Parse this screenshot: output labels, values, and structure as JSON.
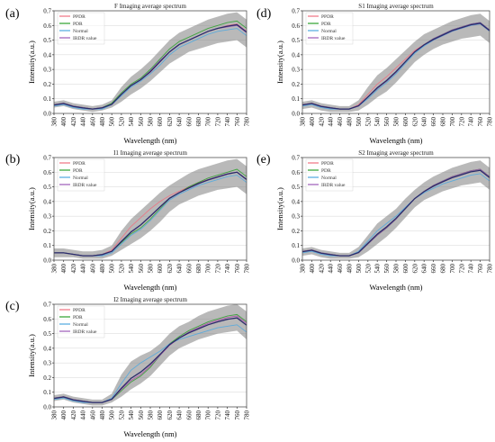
{
  "figure": {
    "panels": [
      {
        "id": "a",
        "letter": "(a)"
      },
      {
        "id": "b",
        "letter": "(b)"
      },
      {
        "id": "c",
        "letter": "(c)"
      },
      {
        "id": "d",
        "letter": "(d)"
      },
      {
        "id": "e",
        "letter": "(e)"
      }
    ]
  },
  "colors": {
    "PPDR": "#f07080",
    "PDR": "#2ca02c",
    "Normal": "#4ea8e0",
    "IRDR value": "#9b59b6",
    "band": "#808080",
    "mean": "#2b2b6b"
  },
  "chart_data": [
    {
      "type": "line",
      "panel": "a",
      "title": "F Imaging average spectrum",
      "xlabel": "Wavelength (nm)",
      "ylabel": "Intensity(a.u.)",
      "xlim": [
        380,
        780
      ],
      "ylim": [
        0.0,
        0.7
      ],
      "xticks": [
        "380",
        "400",
        "420",
        "440",
        "460",
        "480",
        "500",
        "520",
        "540",
        "560",
        "580",
        "600",
        "620",
        "640",
        "660",
        "680",
        "700",
        "720",
        "740",
        "760",
        "780"
      ],
      "yticks": [
        "0.0",
        "0.1",
        "0.2",
        "0.3",
        "0.4",
        "0.5",
        "0.6",
        "0.7"
      ],
      "legend": [
        "PPDR",
        "PDR",
        "Normal",
        "IRDR value"
      ],
      "x": [
        380,
        400,
        420,
        440,
        460,
        480,
        500,
        520,
        540,
        560,
        580,
        600,
        620,
        640,
        660,
        680,
        700,
        720,
        740,
        760,
        780
      ],
      "series": [
        {
          "name": "PPDR",
          "values": [
            0.06,
            0.07,
            0.05,
            0.04,
            0.03,
            0.04,
            0.06,
            0.13,
            0.19,
            0.23,
            0.28,
            0.35,
            0.42,
            0.47,
            0.5,
            0.53,
            0.56,
            0.58,
            0.6,
            0.61,
            0.56
          ]
        },
        {
          "name": "PDR",
          "values": [
            0.06,
            0.07,
            0.05,
            0.04,
            0.03,
            0.04,
            0.07,
            0.14,
            0.2,
            0.24,
            0.3,
            0.37,
            0.44,
            0.49,
            0.52,
            0.55,
            0.58,
            0.6,
            0.62,
            0.63,
            0.58
          ]
        },
        {
          "name": "Normal",
          "values": [
            0.05,
            0.06,
            0.04,
            0.03,
            0.03,
            0.03,
            0.06,
            0.12,
            0.18,
            0.22,
            0.27,
            0.33,
            0.4,
            0.45,
            0.48,
            0.51,
            0.54,
            0.56,
            0.57,
            0.58,
            0.53
          ]
        },
        {
          "name": "IRDR value",
          "values": [
            0.06,
            0.07,
            0.05,
            0.04,
            0.03,
            0.04,
            0.06,
            0.13,
            0.19,
            0.23,
            0.29,
            0.36,
            0.42,
            0.47,
            0.5,
            0.53,
            0.56,
            0.58,
            0.59,
            0.6,
            0.55
          ]
        }
      ],
      "band_low": [
        0.04,
        0.05,
        0.03,
        0.02,
        0.01,
        0.02,
        0.04,
        0.08,
        0.13,
        0.17,
        0.22,
        0.28,
        0.34,
        0.38,
        0.42,
        0.44,
        0.46,
        0.48,
        0.49,
        0.5,
        0.45
      ],
      "band_high": [
        0.08,
        0.09,
        0.07,
        0.06,
        0.05,
        0.06,
        0.09,
        0.18,
        0.25,
        0.3,
        0.36,
        0.43,
        0.5,
        0.55,
        0.58,
        0.61,
        0.64,
        0.66,
        0.68,
        0.69,
        0.64
      ]
    },
    {
      "type": "line",
      "panel": "b",
      "title": "I1 Imaging average spectrum",
      "xlabel": "Wavelength (nm)",
      "ylabel": "Intensity(a.u.)",
      "xlim": [
        380,
        780
      ],
      "ylim": [
        0.0,
        0.7
      ],
      "xticks": [
        "380",
        "400",
        "420",
        "440",
        "460",
        "480",
        "500",
        "520",
        "540",
        "560",
        "580",
        "600",
        "620",
        "640",
        "660",
        "680",
        "700",
        "720",
        "740",
        "760",
        "780"
      ],
      "yticks": [
        "0.0",
        "0.1",
        "0.2",
        "0.3",
        "0.4",
        "0.5",
        "0.6",
        "0.7"
      ],
      "legend": [
        "PPDR",
        "PDR",
        "Normal",
        "IRDR value"
      ],
      "x": [
        380,
        400,
        420,
        440,
        460,
        480,
        500,
        520,
        540,
        560,
        580,
        600,
        620,
        640,
        660,
        680,
        700,
        720,
        740,
        760,
        780
      ],
      "series": [
        {
          "name": "PPDR",
          "values": [
            0.05,
            0.05,
            0.04,
            0.03,
            0.03,
            0.04,
            0.07,
            0.15,
            0.23,
            0.29,
            0.35,
            0.4,
            0.44,
            0.47,
            0.5,
            0.53,
            0.55,
            0.57,
            0.59,
            0.6,
            0.55
          ]
        },
        {
          "name": "PDR",
          "values": [
            0.05,
            0.05,
            0.04,
            0.03,
            0.03,
            0.04,
            0.06,
            0.12,
            0.18,
            0.22,
            0.28,
            0.35,
            0.42,
            0.46,
            0.5,
            0.53,
            0.56,
            0.58,
            0.6,
            0.62,
            0.57
          ]
        },
        {
          "name": "Normal",
          "values": [
            0.05,
            0.05,
            0.04,
            0.03,
            0.03,
            0.03,
            0.05,
            0.11,
            0.17,
            0.21,
            0.27,
            0.34,
            0.41,
            0.45,
            0.48,
            0.51,
            0.53,
            0.55,
            0.57,
            0.58,
            0.53
          ]
        },
        {
          "name": "IRDR value",
          "values": [
            0.05,
            0.05,
            0.04,
            0.03,
            0.03,
            0.04,
            0.06,
            0.13,
            0.19,
            0.24,
            0.3,
            0.36,
            0.42,
            0.46,
            0.49,
            0.52,
            0.55,
            0.57,
            0.59,
            0.6,
            0.55
          ]
        }
      ],
      "band_low": [
        0.02,
        0.02,
        0.02,
        0.01,
        0.01,
        0.01,
        0.03,
        0.07,
        0.11,
        0.15,
        0.2,
        0.26,
        0.33,
        0.38,
        0.41,
        0.44,
        0.46,
        0.48,
        0.49,
        0.5,
        0.45
      ],
      "band_high": [
        0.08,
        0.08,
        0.07,
        0.06,
        0.06,
        0.07,
        0.1,
        0.2,
        0.28,
        0.34,
        0.4,
        0.46,
        0.51,
        0.55,
        0.59,
        0.62,
        0.64,
        0.66,
        0.68,
        0.69,
        0.64
      ]
    },
    {
      "type": "line",
      "panel": "c",
      "title": "I2 Imaging average spectrum",
      "xlabel": "Wavelength (nm)",
      "ylabel": "Intensity(a.u.)",
      "xlim": [
        380,
        780
      ],
      "ylim": [
        0.0,
        0.7
      ],
      "xticks": [
        "380",
        "400",
        "420",
        "440",
        "460",
        "480",
        "500",
        "520",
        "540",
        "560",
        "580",
        "600",
        "620",
        "640",
        "660",
        "680",
        "700",
        "720",
        "740",
        "760",
        "780"
      ],
      "yticks": [
        "0.0",
        "0.1",
        "0.2",
        "0.3",
        "0.4",
        "0.5",
        "0.6",
        "0.7"
      ],
      "legend": [
        "PPDR",
        "PDR",
        "Normal",
        "IRDR value"
      ],
      "x": [
        380,
        400,
        420,
        440,
        460,
        480,
        500,
        520,
        540,
        560,
        580,
        600,
        620,
        640,
        660,
        680,
        700,
        720,
        740,
        760,
        780
      ],
      "series": [
        {
          "name": "PPDR",
          "values": [
            0.06,
            0.07,
            0.05,
            0.04,
            0.03,
            0.03,
            0.05,
            0.12,
            0.18,
            0.22,
            0.28,
            0.35,
            0.42,
            0.47,
            0.51,
            0.54,
            0.57,
            0.59,
            0.61,
            0.62,
            0.57
          ]
        },
        {
          "name": "PDR",
          "values": [
            0.06,
            0.07,
            0.05,
            0.04,
            0.03,
            0.03,
            0.05,
            0.11,
            0.17,
            0.21,
            0.27,
            0.35,
            0.43,
            0.48,
            0.52,
            0.55,
            0.58,
            0.6,
            0.62,
            0.63,
            0.58
          ]
        },
        {
          "name": "Normal",
          "values": [
            0.05,
            0.06,
            0.04,
            0.03,
            0.03,
            0.03,
            0.06,
            0.16,
            0.25,
            0.3,
            0.34,
            0.38,
            0.43,
            0.46,
            0.48,
            0.5,
            0.52,
            0.54,
            0.55,
            0.56,
            0.51
          ]
        },
        {
          "name": "IRDR value",
          "values": [
            0.06,
            0.07,
            0.05,
            0.04,
            0.03,
            0.03,
            0.05,
            0.12,
            0.18,
            0.22,
            0.28,
            0.35,
            0.42,
            0.47,
            0.51,
            0.54,
            0.57,
            0.59,
            0.61,
            0.62,
            0.57
          ]
        }
      ],
      "band_low": [
        0.04,
        0.05,
        0.03,
        0.02,
        0.01,
        0.01,
        0.03,
        0.07,
        0.12,
        0.16,
        0.21,
        0.28,
        0.35,
        0.4,
        0.43,
        0.46,
        0.48,
        0.5,
        0.51,
        0.52,
        0.46
      ],
      "band_high": [
        0.08,
        0.09,
        0.07,
        0.06,
        0.05,
        0.05,
        0.09,
        0.22,
        0.31,
        0.35,
        0.38,
        0.43,
        0.5,
        0.55,
        0.58,
        0.62,
        0.65,
        0.67,
        0.69,
        0.7,
        0.65
      ]
    },
    {
      "type": "line",
      "panel": "d",
      "title": "S1 Imaging average spectrum",
      "xlabel": "Wavelength (nm)",
      "ylabel": "Intensity(a.u.)",
      "xlim": [
        380,
        780
      ],
      "ylim": [
        0.0,
        0.7
      ],
      "xticks": [
        "380",
        "400",
        "420",
        "440",
        "460",
        "480",
        "500",
        "520",
        "540",
        "560",
        "580",
        "600",
        "620",
        "640",
        "660",
        "680",
        "700",
        "720",
        "740",
        "760",
        "780"
      ],
      "yticks": [
        "0.0",
        "0.1",
        "0.2",
        "0.3",
        "0.4",
        "0.5",
        "0.6",
        "0.7"
      ],
      "legend": [
        "PPDR",
        "PDR",
        "Normal",
        "IRDR value"
      ],
      "x": [
        380,
        400,
        420,
        440,
        460,
        480,
        500,
        520,
        540,
        560,
        580,
        600,
        620,
        640,
        660,
        680,
        700,
        720,
        740,
        760,
        780
      ],
      "series": [
        {
          "name": "PPDR",
          "values": [
            0.06,
            0.07,
            0.05,
            0.04,
            0.03,
            0.03,
            0.06,
            0.13,
            0.2,
            0.25,
            0.31,
            0.37,
            0.43,
            0.47,
            0.5,
            0.53,
            0.56,
            0.58,
            0.6,
            0.61,
            0.56
          ]
        },
        {
          "name": "PDR",
          "values": [
            0.06,
            0.07,
            0.05,
            0.04,
            0.03,
            0.03,
            0.05,
            0.11,
            0.17,
            0.22,
            0.28,
            0.35,
            0.42,
            0.47,
            0.51,
            0.54,
            0.57,
            0.59,
            0.61,
            0.62,
            0.57
          ]
        },
        {
          "name": "Normal",
          "values": [
            0.05,
            0.06,
            0.04,
            0.03,
            0.03,
            0.03,
            0.05,
            0.1,
            0.16,
            0.21,
            0.27,
            0.34,
            0.41,
            0.46,
            0.5,
            0.53,
            0.56,
            0.58,
            0.6,
            0.61,
            0.56
          ]
        },
        {
          "name": "IRDR value",
          "values": [
            0.06,
            0.07,
            0.05,
            0.04,
            0.03,
            0.03,
            0.05,
            0.11,
            0.17,
            0.22,
            0.28,
            0.35,
            0.42,
            0.47,
            0.51,
            0.54,
            0.57,
            0.59,
            0.61,
            0.62,
            0.57
          ]
        }
      ],
      "band_low": [
        0.03,
        0.04,
        0.02,
        0.01,
        0.01,
        0.01,
        0.02,
        0.06,
        0.11,
        0.15,
        0.21,
        0.28,
        0.35,
        0.4,
        0.44,
        0.47,
        0.49,
        0.51,
        0.52,
        0.53,
        0.48
      ],
      "band_high": [
        0.08,
        0.09,
        0.07,
        0.06,
        0.05,
        0.05,
        0.09,
        0.18,
        0.26,
        0.31,
        0.37,
        0.43,
        0.49,
        0.54,
        0.57,
        0.6,
        0.63,
        0.65,
        0.67,
        0.68,
        0.63
      ]
    },
    {
      "type": "line",
      "panel": "e",
      "title": "S2 Imaging average spectrum",
      "xlabel": "Wavelength (nm)",
      "ylabel": "Intensity(a.u.)",
      "xlim": [
        380,
        780
      ],
      "ylim": [
        0.0,
        0.7
      ],
      "xticks": [
        "380",
        "400",
        "420",
        "440",
        "460",
        "480",
        "500",
        "520",
        "540",
        "560",
        "580",
        "600",
        "620",
        "640",
        "660",
        "680",
        "700",
        "720",
        "740",
        "760",
        "780"
      ],
      "yticks": [
        "0.0",
        "0.1",
        "0.2",
        "0.3",
        "0.4",
        "0.5",
        "0.6",
        "0.7"
      ],
      "legend": [
        "PPDR",
        "PDR",
        "Normal",
        "IRDR value"
      ],
      "x": [
        380,
        400,
        420,
        440,
        460,
        480,
        500,
        520,
        540,
        560,
        580,
        600,
        620,
        640,
        660,
        680,
        700,
        720,
        740,
        760,
        780
      ],
      "series": [
        {
          "name": "PPDR",
          "values": [
            0.06,
            0.07,
            0.05,
            0.04,
            0.03,
            0.03,
            0.05,
            0.11,
            0.17,
            0.22,
            0.28,
            0.35,
            0.42,
            0.47,
            0.51,
            0.54,
            0.57,
            0.59,
            0.61,
            0.62,
            0.57
          ]
        },
        {
          "name": "PDR",
          "values": [
            0.06,
            0.07,
            0.05,
            0.04,
            0.03,
            0.03,
            0.05,
            0.11,
            0.17,
            0.22,
            0.28,
            0.35,
            0.42,
            0.47,
            0.51,
            0.54,
            0.57,
            0.59,
            0.61,
            0.62,
            0.57
          ]
        },
        {
          "name": "Normal",
          "values": [
            0.05,
            0.06,
            0.04,
            0.03,
            0.03,
            0.03,
            0.06,
            0.13,
            0.2,
            0.25,
            0.3,
            0.36,
            0.42,
            0.46,
            0.49,
            0.52,
            0.54,
            0.56,
            0.58,
            0.59,
            0.54
          ]
        },
        {
          "name": "IRDR value",
          "values": [
            0.06,
            0.07,
            0.05,
            0.04,
            0.03,
            0.03,
            0.05,
            0.11,
            0.17,
            0.22,
            0.28,
            0.35,
            0.42,
            0.47,
            0.51,
            0.54,
            0.57,
            0.59,
            0.61,
            0.62,
            0.57
          ]
        }
      ],
      "band_low": [
        0.03,
        0.04,
        0.02,
        0.01,
        0.01,
        0.01,
        0.02,
        0.06,
        0.11,
        0.16,
        0.22,
        0.29,
        0.36,
        0.41,
        0.44,
        0.47,
        0.49,
        0.51,
        0.52,
        0.53,
        0.48
      ],
      "band_high": [
        0.08,
        0.09,
        0.07,
        0.06,
        0.05,
        0.05,
        0.09,
        0.17,
        0.25,
        0.3,
        0.35,
        0.42,
        0.48,
        0.53,
        0.57,
        0.6,
        0.63,
        0.65,
        0.67,
        0.68,
        0.63
      ]
    }
  ]
}
